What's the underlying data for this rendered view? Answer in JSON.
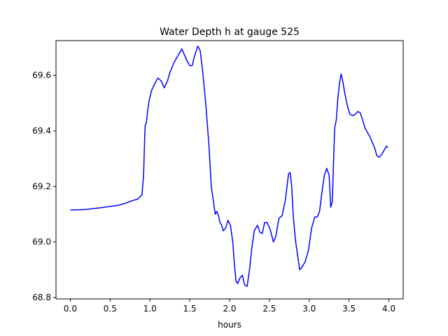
{
  "chart_data": {
    "type": "line",
    "title": "Water Depth h at gauge 525",
    "xlabel": "hours",
    "ylabel": "",
    "xlim": [
      -0.18,
      4.18
    ],
    "ylim": [
      68.795,
      69.725
    ],
    "xticks": [
      0.0,
      0.5,
      1.0,
      1.5,
      2.0,
      2.5,
      3.0,
      3.5,
      4.0
    ],
    "xtick_labels": [
      "0.0",
      "0.5",
      "1.0",
      "1.5",
      "2.0",
      "2.5",
      "3.0",
      "3.5",
      "4.0"
    ],
    "yticks": [
      68.8,
      69.0,
      69.2,
      69.4,
      69.6
    ],
    "ytick_labels": [
      "68.8",
      "69.0",
      "69.2",
      "69.4",
      "69.6"
    ],
    "grid": false,
    "line_color": "#0000ff",
    "series": [
      {
        "x": [
          0.0,
          0.2,
          0.4,
          0.6,
          0.68,
          0.75,
          0.85,
          0.9,
          0.92,
          0.935,
          0.94,
          0.955,
          0.97,
          0.99,
          1.02,
          1.06,
          1.1,
          1.14,
          1.18,
          1.22,
          1.25,
          1.3,
          1.35,
          1.4,
          1.43,
          1.46,
          1.5,
          1.53,
          1.56,
          1.6,
          1.63,
          1.66,
          1.7,
          1.74,
          1.77,
          1.8,
          1.82,
          1.84,
          1.86,
          1.88,
          1.9,
          1.92,
          1.95,
          1.98,
          2.01,
          2.04,
          2.06,
          2.08,
          2.1,
          2.13,
          2.16,
          2.19,
          2.22,
          2.25,
          2.28,
          2.31,
          2.35,
          2.38,
          2.41,
          2.44,
          2.47,
          2.51,
          2.55,
          2.58,
          2.62,
          2.66,
          2.7,
          2.74,
          2.76,
          2.78,
          2.8,
          2.83,
          2.85,
          2.88,
          2.91,
          2.95,
          2.99,
          3.03,
          3.07,
          3.1,
          3.13,
          3.16,
          3.19,
          3.22,
          3.25,
          3.27,
          3.29,
          3.31,
          3.32,
          3.34,
          3.36,
          3.38,
          3.4,
          3.42,
          3.45,
          3.48,
          3.51,
          3.55,
          3.58,
          3.61,
          3.64,
          3.67,
          3.7,
          3.73,
          3.76,
          3.79,
          3.82,
          3.85,
          3.88,
          3.91,
          3.94,
          3.97,
          3.99
        ],
        "y": [
          69.115,
          69.117,
          69.124,
          69.132,
          69.138,
          69.146,
          69.155,
          69.17,
          69.24,
          69.39,
          69.42,
          69.43,
          69.47,
          69.51,
          69.545,
          69.57,
          69.59,
          69.58,
          69.555,
          69.58,
          69.61,
          69.645,
          69.67,
          69.695,
          69.675,
          69.655,
          69.635,
          69.635,
          69.67,
          69.705,
          69.69,
          69.62,
          69.5,
          69.35,
          69.2,
          69.14,
          69.1,
          69.11,
          69.095,
          69.07,
          69.06,
          69.04,
          69.05,
          69.078,
          69.06,
          69.0,
          68.92,
          68.86,
          68.85,
          68.87,
          68.88,
          68.845,
          68.84,
          68.9,
          68.98,
          69.04,
          69.06,
          69.035,
          69.03,
          69.07,
          69.07,
          69.045,
          69.0,
          69.02,
          69.085,
          69.095,
          69.15,
          69.245,
          69.25,
          69.2,
          69.09,
          69.0,
          68.96,
          68.9,
          68.91,
          68.93,
          68.97,
          69.05,
          69.09,
          69.09,
          69.11,
          69.18,
          69.24,
          69.265,
          69.24,
          69.125,
          69.145,
          69.33,
          69.41,
          69.44,
          69.52,
          69.57,
          69.605,
          69.58,
          69.53,
          69.49,
          69.46,
          69.455,
          69.46,
          69.47,
          69.465,
          69.44,
          69.41,
          69.395,
          69.38,
          69.36,
          69.34,
          69.31,
          69.305,
          69.315,
          69.33,
          69.345,
          69.34
        ]
      }
    ]
  }
}
